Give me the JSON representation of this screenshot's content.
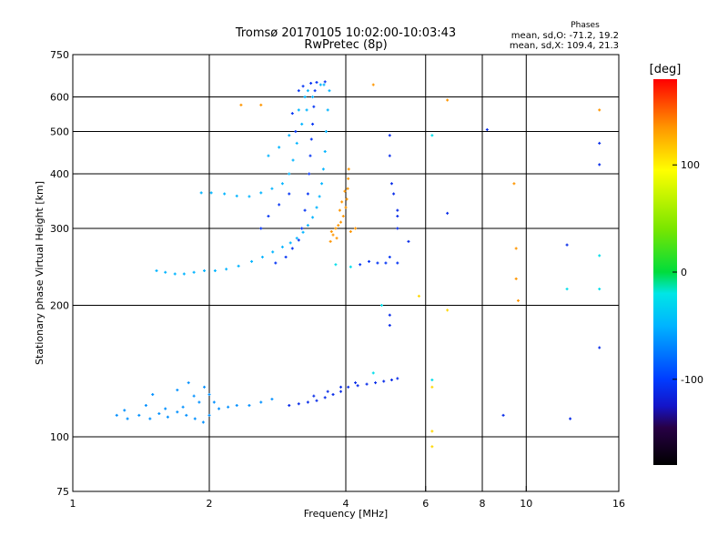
{
  "chart_data": {
    "type": "scatter",
    "title": "Tromsø 20170105 10:02:00-10:03:43",
    "subtitle": "RwPretec (8p)",
    "xlabel": "Frequency [MHz]",
    "ylabel": "Stationary phase Virtual Height [km]",
    "xscale": "log",
    "yscale": "log",
    "xlim": [
      1,
      16
    ],
    "ylim": [
      75,
      750
    ],
    "grid": true,
    "xticks": [
      1,
      2,
      4,
      6,
      8,
      10,
      16
    ],
    "xtick_labels": [
      "1",
      "2",
      "4",
      "6",
      "8",
      "10",
      "16"
    ],
    "yticks": [
      75,
      100,
      200,
      300,
      400,
      500,
      600,
      750
    ],
    "ytick_labels": [
      "75",
      "100",
      "200",
      "300",
      "400",
      "500",
      "600",
      "750"
    ],
    "xgrid": [
      2,
      4,
      6,
      8,
      10
    ],
    "ygrid": [
      100,
      200,
      300,
      400,
      500,
      600
    ],
    "stats": {
      "title": "Phases",
      "line1": "mean, sd,O: -71.2, 19.2",
      "line2": "mean, sd,X: 109.4, 21.3"
    },
    "colorbar": {
      "label": "[deg]",
      "min": -180,
      "max": 180,
      "ticks": [
        100,
        0,
        -100
      ],
      "tick_labels": [
        "100",
        "0",
        "-100"
      ]
    },
    "series": [
      {
        "points": [
          [
            1.53,
            240
          ],
          [
            1.6,
            238
          ],
          [
            1.68,
            236
          ],
          [
            1.76,
            236
          ],
          [
            1.85,
            238
          ],
          [
            1.95,
            240
          ],
          [
            2.06,
            240
          ],
          [
            2.18,
            242
          ],
          [
            2.32,
            246
          ],
          [
            2.48,
            252
          ],
          [
            2.62,
            258
          ],
          [
            2.76,
            265
          ],
          [
            2.9,
            272
          ],
          [
            3.02,
            278
          ],
          [
            3.12,
            285
          ],
          [
            3.22,
            294
          ],
          [
            3.3,
            305
          ],
          [
            3.38,
            318
          ],
          [
            3.45,
            335
          ],
          [
            3.5,
            355
          ],
          [
            3.54,
            380
          ],
          [
            3.57,
            410
          ],
          [
            3.6,
            450
          ],
          [
            3.62,
            500
          ],
          [
            3.65,
            560
          ],
          [
            3.68,
            620
          ],
          [
            3.58,
            640
          ],
          [
            3.52,
            640
          ],
          [
            3.38,
            600
          ],
          [
            3.28,
            560
          ],
          [
            3.2,
            520
          ],
          [
            3.12,
            470
          ],
          [
            3.06,
            430
          ],
          [
            3.0,
            400
          ],
          [
            2.9,
            380
          ],
          [
            2.75,
            370
          ],
          [
            2.6,
            362
          ],
          [
            2.45,
            355
          ],
          [
            2.3,
            356
          ],
          [
            2.16,
            360
          ],
          [
            2.02,
            362
          ],
          [
            1.92,
            362
          ],
          [
            2.7,
            440
          ],
          [
            2.85,
            460
          ],
          [
            3.0,
            490
          ],
          [
            3.15,
            560
          ],
          [
            3.25,
            600
          ],
          [
            3.3,
            620
          ]
        ],
        "phase": -50
      },
      {
        "points": [
          [
            2.8,
            250
          ],
          [
            2.95,
            258
          ],
          [
            3.05,
            270
          ],
          [
            3.15,
            282
          ],
          [
            3.2,
            300
          ],
          [
            3.25,
            330
          ],
          [
            3.3,
            360
          ],
          [
            3.32,
            400
          ],
          [
            3.34,
            440
          ],
          [
            3.36,
            480
          ],
          [
            3.38,
            520
          ],
          [
            3.4,
            570
          ],
          [
            3.42,
            620
          ],
          [
            3.1,
            500
          ],
          [
            3.05,
            550
          ],
          [
            3.15,
            620
          ],
          [
            3.22,
            635
          ],
          [
            3.35,
            645
          ],
          [
            3.45,
            648
          ],
          [
            3.6,
            650
          ],
          [
            2.6,
            300
          ],
          [
            2.7,
            320
          ],
          [
            2.85,
            340
          ],
          [
            3.0,
            360
          ],
          [
            4.3,
            248
          ],
          [
            4.5,
            252
          ],
          [
            4.7,
            250
          ],
          [
            4.9,
            250
          ],
          [
            5.0,
            258
          ],
          [
            5.2,
            250
          ]
        ],
        "phase": -105
      },
      {
        "points": [
          [
            3.7,
            280
          ],
          [
            3.75,
            290
          ],
          [
            3.8,
            300
          ],
          [
            3.85,
            305
          ],
          [
            3.9,
            310
          ],
          [
            3.95,
            320
          ],
          [
            4.0,
            335
          ],
          [
            4.02,
            350
          ],
          [
            4.04,
            370
          ],
          [
            4.05,
            390
          ],
          [
            4.06,
            410
          ],
          [
            3.88,
            330
          ],
          [
            3.92,
            345
          ],
          [
            3.98,
            365
          ],
          [
            3.72,
            295
          ],
          [
            3.82,
            285
          ],
          [
            4.1,
            295
          ],
          [
            4.2,
            300
          ],
          [
            4.6,
            640
          ],
          [
            6.7,
            590
          ],
          [
            9.4,
            380
          ],
          [
            9.5,
            270
          ],
          [
            9.5,
            230
          ],
          [
            9.6,
            205
          ],
          [
            14.5,
            560
          ],
          [
            2.6,
            575
          ],
          [
            2.35,
            575
          ]
        ],
        "phase": 135
      },
      {
        "points": [
          [
            1.25,
            112
          ],
          [
            1.32,
            110
          ],
          [
            1.4,
            112
          ],
          [
            1.48,
            110
          ],
          [
            1.55,
            113
          ],
          [
            1.62,
            111
          ],
          [
            1.7,
            114
          ],
          [
            1.78,
            112
          ],
          [
            1.86,
            110
          ],
          [
            1.94,
            108
          ],
          [
            2.0,
            112
          ],
          [
            2.1,
            116
          ],
          [
            2.2,
            117
          ],
          [
            2.3,
            118
          ],
          [
            2.45,
            118
          ],
          [
            2.6,
            120
          ],
          [
            2.75,
            122
          ],
          [
            1.3,
            115
          ],
          [
            1.45,
            118
          ],
          [
            1.6,
            116
          ],
          [
            1.75,
            117
          ],
          [
            1.9,
            120
          ],
          [
            2.05,
            120
          ],
          [
            1.5,
            125
          ],
          [
            1.7,
            128
          ],
          [
            1.85,
            124
          ],
          [
            1.95,
            130
          ],
          [
            2.0,
            125
          ],
          [
            1.8,
            133
          ]
        ],
        "phase": -65
      },
      {
        "points": [
          [
            3.0,
            118
          ],
          [
            3.15,
            119
          ],
          [
            3.3,
            120
          ],
          [
            3.45,
            121
          ],
          [
            3.6,
            123
          ],
          [
            3.75,
            125
          ],
          [
            3.9,
            127
          ],
          [
            4.05,
            130
          ],
          [
            4.25,
            131
          ],
          [
            4.45,
            132
          ],
          [
            4.65,
            133
          ],
          [
            4.85,
            134
          ],
          [
            5.05,
            135
          ],
          [
            5.2,
            136
          ],
          [
            3.4,
            124
          ],
          [
            3.65,
            127
          ],
          [
            3.9,
            130
          ],
          [
            4.2,
            133
          ],
          [
            5.0,
            490
          ],
          [
            5.0,
            440
          ],
          [
            5.05,
            380
          ],
          [
            5.1,
            360
          ],
          [
            5.2,
            330
          ],
          [
            5.0,
            190
          ],
          [
            5.0,
            180
          ],
          [
            12.3,
            275
          ],
          [
            14.5,
            470
          ],
          [
            14.5,
            420
          ],
          [
            14.5,
            160
          ],
          [
            12.5,
            110
          ],
          [
            8.9,
            112
          ],
          [
            8.2,
            505
          ],
          [
            6.7,
            325
          ],
          [
            5.5,
            280
          ],
          [
            5.2,
            320
          ],
          [
            5.2,
            300
          ]
        ],
        "phase": -110
      },
      {
        "points": [
          [
            6.2,
            490
          ],
          [
            6.2,
            135
          ],
          [
            4.6,
            140
          ],
          [
            4.8,
            200
          ],
          [
            14.5,
            260
          ],
          [
            12.3,
            218
          ],
          [
            14.5,
            218
          ],
          [
            3.8,
            248
          ],
          [
            4.1,
            245
          ]
        ],
        "phase": -25
      },
      {
        "points": [
          [
            6.2,
            95
          ],
          [
            6.2,
            103
          ],
          [
            6.7,
            195
          ],
          [
            5.8,
            210
          ],
          [
            6.2,
            130
          ]
        ],
        "phase": 110
      }
    ]
  }
}
